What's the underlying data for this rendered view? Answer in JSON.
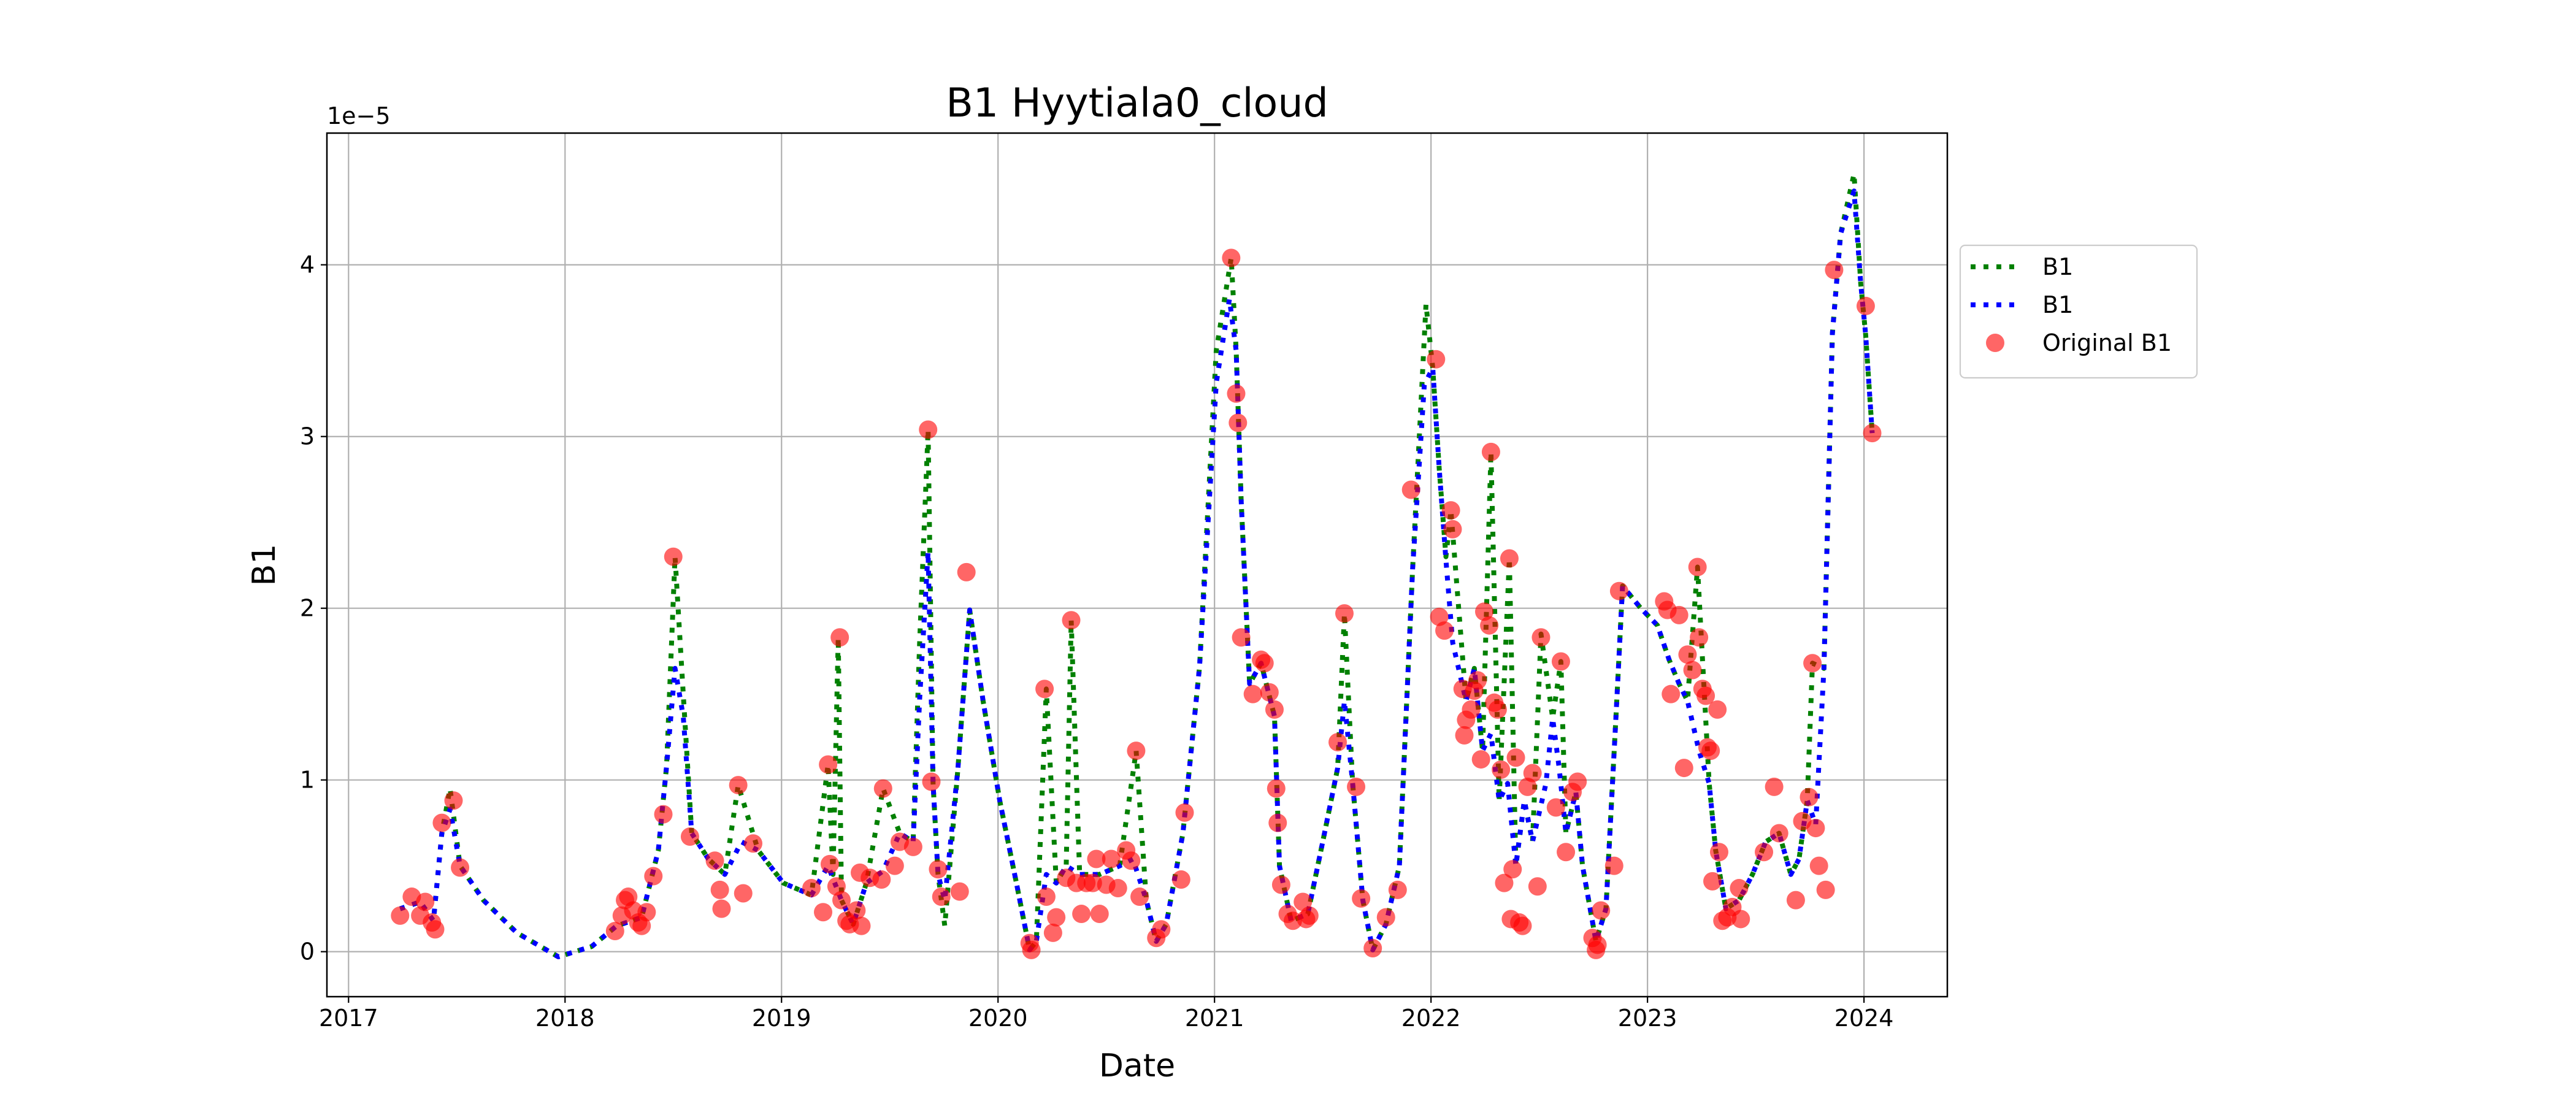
{
  "chart_data": {
    "type": "line",
    "title": "B1 Hyytiala0_cloud",
    "x_label": "Date",
    "y_label": "B1",
    "offset_text": "1e−5",
    "xlim": [
      2016.9,
      2024.385
    ],
    "xticks": [
      2017,
      2018,
      2019,
      2020,
      2021,
      2022,
      2023,
      2024
    ],
    "ylim": [
      -0.262,
      4.767
    ],
    "yticks": [
      0,
      1,
      2,
      3,
      4
    ],
    "grid": true,
    "legend_loc": "right",
    "series": [
      {
        "name": "B1",
        "type": "line",
        "style": "dotted",
        "color": "#008000",
        "x": [
          2017.238,
          2017.331,
          2017.392,
          2017.431,
          2017.469,
          2017.515,
          2017.623,
          2017.777,
          2017.969,
          2018.123,
          2018.238,
          2018.354,
          2018.431,
          2018.469,
          2018.508,
          2018.546,
          2018.585,
          2018.662,
          2018.738,
          2018.8,
          2018.892,
          2019.008,
          2019.138,
          2019.215,
          2019.238,
          2019.262,
          2019.277,
          2019.331,
          2019.392,
          2019.469,
          2019.546,
          2019.608,
          2019.638,
          2019.677,
          2019.7,
          2019.723,
          2019.754,
          2019.815,
          2019.869,
          2019.931,
          2020.008,
          2020.085,
          2020.146,
          2020.177,
          2020.223,
          2020.269,
          2020.315,
          2020.338,
          2020.377,
          2020.469,
          2020.562,
          2020.638,
          2020.685,
          2020.731,
          2020.777,
          2020.854,
          2020.931,
          2021.008,
          2021.077,
          2021.1,
          2021.123,
          2021.162,
          2021.215,
          2021.277,
          2021.3,
          2021.354,
          2021.431,
          2021.508,
          2021.569,
          2021.6,
          2021.638,
          2021.685,
          2021.731,
          2021.792,
          2021.854,
          2021.915,
          2021.977,
          2022.008,
          2022.038,
          2022.069,
          2022.092,
          2022.162,
          2022.2,
          2022.238,
          2022.277,
          2022.315,
          2022.362,
          2022.392,
          2022.431,
          2022.469,
          2022.508,
          2022.562,
          2022.6,
          2022.623,
          2022.669,
          2022.7,
          2022.762,
          2022.808,
          2022.854,
          2022.885,
          2022.969,
          2023.046,
          2023.1,
          2023.146,
          2023.185,
          2023.231,
          2023.285,
          2023.315,
          2023.362,
          2023.423,
          2023.485,
          2023.546,
          2023.608,
          2023.662,
          2023.7,
          2023.738,
          2023.762,
          2023.815,
          2023.854,
          2023.892,
          2023.954,
          2023.985,
          2024.008,
          2024.038
        ],
        "values": [
          0.25,
          0.29,
          0.18,
          0.69,
          0.95,
          0.5,
          0.3,
          0.11,
          -0.03,
          0.03,
          0.15,
          0.2,
          0.59,
          1.08,
          2.3,
          1.5,
          0.69,
          0.54,
          0.45,
          0.97,
          0.59,
          0.4,
          0.33,
          1.09,
          0.45,
          1.83,
          0.3,
          0.16,
          0.4,
          0.95,
          0.69,
          0.64,
          1.8,
          3.04,
          0.98,
          0.45,
          0.15,
          1.07,
          1.99,
          1.46,
          0.88,
          0.4,
          0.01,
          0.06,
          1.53,
          0.4,
          0.5,
          1.93,
          0.45,
          0.45,
          0.5,
          1.17,
          0.3,
          0.06,
          0.16,
          0.69,
          1.66,
          3.5,
          4.04,
          3.5,
          2.63,
          1.56,
          1.68,
          1.37,
          0.5,
          0.18,
          0.22,
          0.69,
          1.07,
          1.97,
          0.98,
          0.3,
          0.01,
          0.16,
          0.5,
          2.23,
          3.77,
          3.4,
          2.81,
          2.3,
          2.57,
          1.46,
          1.65,
          1.17,
          2.91,
          0.88,
          2.29,
          0.5,
          0.88,
          0.64,
          1.85,
          1.36,
          1.69,
          0.69,
          0.93,
          0.5,
          0.06,
          0.25,
          1.36,
          2.13,
          2.0,
          1.9,
          1.7,
          1.56,
          1.46,
          2.24,
          0.98,
          0.59,
          0.25,
          0.3,
          0.45,
          0.64,
          0.69,
          0.45,
          0.54,
          0.88,
          1.68,
          1.65,
          3.6,
          4.18,
          4.53,
          3.89,
          3.59,
          3.02
        ]
      },
      {
        "name": "B1",
        "type": "line",
        "style": "dotted",
        "color": "#0000ff",
        "x": [
          2017.238,
          2017.331,
          2017.392,
          2017.431,
          2017.469,
          2017.515,
          2017.623,
          2017.777,
          2017.969,
          2018.123,
          2018.238,
          2018.354,
          2018.431,
          2018.469,
          2018.508,
          2018.546,
          2018.585,
          2018.662,
          2018.738,
          2018.815,
          2018.892,
          2019.008,
          2019.138,
          2019.215,
          2019.277,
          2019.331,
          2019.392,
          2019.469,
          2019.546,
          2019.608,
          2019.638,
          2019.677,
          2019.7,
          2019.723,
          2019.754,
          2019.815,
          2019.869,
          2019.931,
          2020.008,
          2020.085,
          2020.146,
          2020.177,
          2020.223,
          2020.269,
          2020.315,
          2020.377,
          2020.469,
          2020.562,
          2020.623,
          2020.685,
          2020.731,
          2020.777,
          2020.854,
          2020.931,
          2021.008,
          2021.069,
          2021.1,
          2021.123,
          2021.162,
          2021.215,
          2021.277,
          2021.3,
          2021.354,
          2021.431,
          2021.508,
          2021.569,
          2021.6,
          2021.638,
          2021.685,
          2021.731,
          2021.792,
          2021.854,
          2021.915,
          2021.969,
          2022.008,
          2022.038,
          2022.069,
          2022.1,
          2022.162,
          2022.2,
          2022.238,
          2022.277,
          2022.315,
          2022.354,
          2022.392,
          2022.431,
          2022.469,
          2022.531,
          2022.562,
          2022.592,
          2022.623,
          2022.669,
          2022.7,
          2022.762,
          2022.808,
          2022.854,
          2022.885,
          2022.969,
          2023.046,
          2023.1,
          2023.146,
          2023.185,
          2023.238,
          2023.285,
          2023.315,
          2023.362,
          2023.423,
          2023.485,
          2023.546,
          2023.608,
          2023.662,
          2023.7,
          2023.738,
          2023.777,
          2023.815,
          2023.854,
          2023.892,
          2023.954,
          2023.985,
          2024.008,
          2024.038
        ],
        "values": [
          0.25,
          0.29,
          0.18,
          0.69,
          0.83,
          0.5,
          0.3,
          0.11,
          -0.03,
          0.03,
          0.15,
          0.2,
          0.59,
          1.08,
          1.65,
          1.37,
          0.69,
          0.54,
          0.45,
          0.64,
          0.59,
          0.4,
          0.33,
          0.5,
          0.3,
          0.16,
          0.4,
          0.47,
          0.69,
          0.64,
          1.47,
          2.33,
          0.98,
          0.45,
          0.3,
          1.07,
          1.99,
          1.46,
          0.88,
          0.4,
          0.01,
          0.06,
          0.45,
          0.4,
          0.5,
          0.45,
          0.45,
          0.5,
          0.54,
          0.3,
          0.06,
          0.16,
          0.69,
          1.66,
          3.31,
          3.8,
          3.5,
          2.63,
          1.56,
          1.68,
          1.37,
          0.5,
          0.18,
          0.22,
          0.69,
          1.07,
          1.46,
          0.98,
          0.3,
          0.01,
          0.16,
          0.5,
          2.23,
          3.3,
          3.4,
          2.81,
          2.28,
          1.8,
          1.46,
          1.65,
          1.17,
          1.27,
          0.88,
          0.98,
          0.5,
          0.88,
          0.64,
          0.98,
          1.36,
          1.07,
          0.69,
          0.93,
          0.5,
          0.06,
          0.25,
          1.36,
          2.13,
          2.0,
          1.9,
          1.7,
          1.56,
          1.46,
          1.17,
          0.98,
          0.59,
          0.25,
          0.3,
          0.45,
          0.64,
          0.69,
          0.45,
          0.54,
          0.88,
          0.74,
          1.65,
          3.6,
          4.18,
          4.43,
          3.89,
          3.59,
          3.02
        ]
      },
      {
        "name": "Original B1",
        "type": "scatter",
        "color": "#ff0000",
        "alpha": 0.6,
        "x": [
          2017.238,
          2017.292,
          2017.331,
          2017.354,
          2017.385,
          2017.4,
          2017.431,
          2017.485,
          2017.515,
          2018.231,
          2018.262,
          2018.277,
          2018.292,
          2018.315,
          2018.338,
          2018.354,
          2018.377,
          2018.408,
          2018.454,
          2018.5,
          2018.577,
          2018.692,
          2018.715,
          2018.723,
          2018.8,
          2018.823,
          2018.869,
          2019.138,
          2019.192,
          2019.215,
          2019.223,
          2019.254,
          2019.269,
          2019.277,
          2019.3,
          2019.315,
          2019.346,
          2019.362,
          2019.369,
          2019.408,
          2019.462,
          2019.469,
          2019.523,
          2019.546,
          2019.608,
          2019.677,
          2019.692,
          2019.723,
          2019.738,
          2019.823,
          2019.854,
          2020.146,
          2020.154,
          2020.215,
          2020.223,
          2020.254,
          2020.269,
          2020.315,
          2020.338,
          2020.362,
          2020.385,
          2020.408,
          2020.438,
          2020.454,
          2020.469,
          2020.5,
          2020.523,
          2020.554,
          2020.592,
          2020.615,
          2020.638,
          2020.654,
          2020.731,
          2020.754,
          2020.846,
          2020.862,
          2021.077,
          2021.1,
          2021.108,
          2021.123,
          2021.177,
          2021.215,
          2021.231,
          2021.254,
          2021.277,
          2021.285,
          2021.292,
          2021.308,
          2021.338,
          2021.362,
          2021.408,
          2021.423,
          2021.438,
          2021.569,
          2021.6,
          2021.654,
          2021.677,
          2021.731,
          2021.792,
          2021.846,
          2021.908,
          2022.023,
          2022.038,
          2022.062,
          2022.092,
          2022.1,
          2022.146,
          2022.154,
          2022.162,
          2022.185,
          2022.2,
          2022.215,
          2022.231,
          2022.246,
          2022.269,
          2022.277,
          2022.292,
          2022.308,
          2022.323,
          2022.338,
          2022.362,
          2022.369,
          2022.377,
          2022.392,
          2022.408,
          2022.423,
          2022.446,
          2022.469,
          2022.492,
          2022.508,
          2022.577,
          2022.6,
          2022.623,
          2022.654,
          2022.677,
          2022.746,
          2022.762,
          2022.769,
          2022.785,
          2022.846,
          2022.869,
          2023.077,
          2023.092,
          2023.108,
          2023.146,
          2023.169,
          2023.185,
          2023.208,
          2023.231,
          2023.238,
          2023.254,
          2023.269,
          2023.277,
          2023.292,
          2023.3,
          2023.323,
          2023.331,
          2023.346,
          2023.369,
          2023.392,
          2023.423,
          2023.431,
          2023.538,
          2023.585,
          2023.608,
          2023.685,
          2023.715,
          2023.746,
          2023.762,
          2023.777,
          2023.792,
          2023.823,
          2023.862,
          2024.008,
          2024.038
        ],
        "values": [
          0.21,
          0.32,
          0.21,
          0.29,
          0.17,
          0.13,
          0.75,
          0.88,
          0.49,
          0.12,
          0.21,
          0.3,
          0.32,
          0.24,
          0.17,
          0.15,
          0.23,
          0.44,
          0.8,
          2.3,
          0.67,
          0.53,
          0.36,
          0.25,
          0.97,
          0.34,
          0.63,
          0.37,
          0.23,
          1.09,
          0.51,
          0.38,
          1.83,
          0.3,
          0.18,
          0.16,
          0.24,
          0.46,
          0.15,
          0.43,
          0.42,
          0.95,
          0.5,
          0.64,
          0.61,
          3.04,
          0.99,
          0.48,
          0.32,
          0.35,
          2.21,
          0.05,
          0.01,
          1.53,
          0.32,
          0.11,
          0.2,
          0.43,
          1.93,
          0.4,
          0.22,
          0.4,
          0.4,
          0.54,
          0.22,
          0.39,
          0.54,
          0.37,
          0.59,
          0.53,
          1.17,
          0.32,
          0.08,
          0.13,
          0.42,
          0.81,
          4.04,
          3.25,
          3.08,
          1.83,
          1.5,
          1.7,
          1.68,
          1.51,
          1.41,
          0.95,
          0.75,
          0.39,
          0.22,
          0.18,
          0.29,
          0.19,
          0.21,
          1.22,
          1.97,
          0.96,
          0.31,
          0.02,
          0.2,
          0.36,
          2.69,
          3.45,
          1.95,
          1.87,
          2.57,
          2.46,
          1.53,
          1.26,
          1.35,
          1.41,
          1.52,
          1.58,
          1.12,
          1.98,
          1.9,
          2.91,
          1.45,
          1.41,
          1.06,
          0.4,
          2.29,
          0.19,
          0.48,
          1.13,
          0.17,
          0.15,
          0.96,
          1.04,
          0.38,
          1.83,
          0.84,
          1.69,
          0.58,
          0.93,
          0.99,
          0.08,
          0.01,
          0.04,
          0.24,
          0.5,
          2.1,
          2.04,
          1.99,
          1.5,
          1.96,
          1.07,
          1.73,
          1.64,
          2.24,
          1.83,
          1.53,
          1.49,
          1.19,
          1.17,
          0.41,
          1.41,
          0.58,
          0.18,
          0.2,
          0.26,
          0.37,
          0.19,
          0.58,
          0.96,
          0.69,
          0.3,
          0.76,
          0.9,
          1.68,
          0.72,
          0.5,
          0.36,
          3.97,
          3.76,
          3.02
        ]
      }
    ]
  }
}
